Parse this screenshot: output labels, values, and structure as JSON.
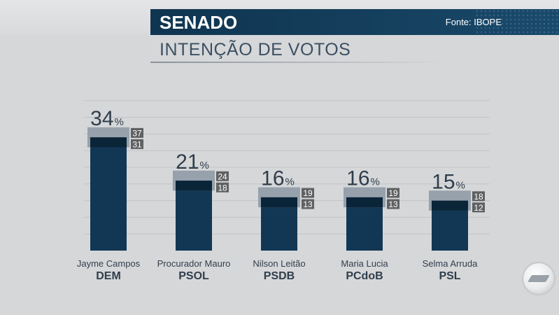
{
  "header": {
    "title": "SENADO",
    "source": "Fonte: IBOPE"
  },
  "subtitle": "INTENÇÃO DE VOTOS",
  "chart_data": {
    "type": "bar",
    "title": "SENADO",
    "subtitle": "INTENÇÃO DE VOTOS",
    "unit": "%",
    "ylim": [
      0,
      50
    ],
    "grid": true,
    "categories": [
      {
        "name": "Jayme Campos",
        "party": "DEM"
      },
      {
        "name": "Procurador Mauro",
        "party": "PSOL"
      },
      {
        "name": "Nilson Leitão",
        "party": "PSDB"
      },
      {
        "name": "Maria Lucia",
        "party": "PCdoB"
      },
      {
        "name": "Selma Arruda",
        "party": "PSL"
      }
    ],
    "values": [
      34,
      21,
      16,
      16,
      15
    ],
    "margin_upper": [
      37,
      24,
      19,
      19,
      18
    ],
    "margin_lower": [
      31,
      18,
      13,
      13,
      12
    ],
    "colors": {
      "bar": "#123754",
      "bar_inner": "#0a2438",
      "margin_band": "#8f9ba6",
      "margin_label_bg": "#5f6061",
      "margin_label_text": "#ffffff",
      "value_text": "#2f3e4c",
      "grid": "#c2c4c7"
    }
  }
}
